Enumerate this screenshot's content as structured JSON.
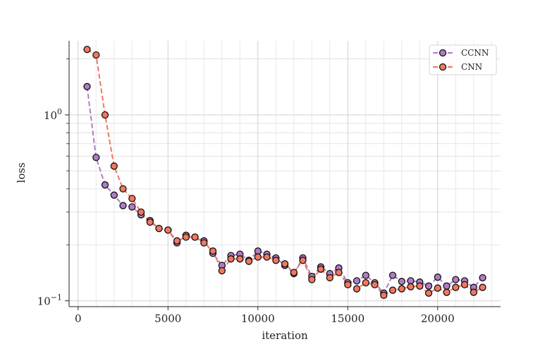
{
  "chart_data": {
    "type": "line",
    "title": "",
    "xlabel": "iteration",
    "ylabel": "loss",
    "xlim": [
      -500,
      23500
    ],
    "ylim": [
      0.093,
      2.5
    ],
    "yscale": "log",
    "grid": true,
    "legend_position": "top-right",
    "x_ticks": [
      0,
      5000,
      10000,
      15000,
      20000
    ],
    "x_tick_labels": [
      "0",
      "5000",
      "10000",
      "15000",
      "20000"
    ],
    "y_major_ticks": [
      0.1,
      1.0
    ],
    "y_tick_labels": [
      "10",
      "10"
    ],
    "y_tick_exponents": [
      "−1",
      "0"
    ],
    "y_minor_ticks": [
      0.2,
      0.3,
      0.4,
      0.5,
      0.6,
      0.7,
      0.8,
      0.9,
      2.0
    ],
    "x": [
      500,
      1000,
      1500,
      2000,
      2500,
      3000,
      3500,
      4000,
      4500,
      5000,
      5500,
      6000,
      6500,
      7000,
      7500,
      8000,
      8500,
      9000,
      9500,
      10000,
      10500,
      11000,
      11500,
      12000,
      12500,
      13000,
      13500,
      14000,
      14500,
      15000,
      15500,
      16000,
      16500,
      17000,
      17500,
      18000,
      18500,
      19000,
      19500,
      20000,
      20500,
      21000,
      21500,
      22000,
      22500
    ],
    "series": [
      {
        "name": "CCNN",
        "color": "#b07cc6",
        "values": [
          1.42,
          0.59,
          0.42,
          0.37,
          0.325,
          0.32,
          0.29,
          0.27,
          0.245,
          0.24,
          0.205,
          0.225,
          0.22,
          0.21,
          0.18,
          0.155,
          0.175,
          0.178,
          0.165,
          0.185,
          0.178,
          0.17,
          0.155,
          0.14,
          0.17,
          0.135,
          0.152,
          0.14,
          0.15,
          0.125,
          0.128,
          0.137,
          0.125,
          0.11,
          0.137,
          0.127,
          0.128,
          0.126,
          0.12,
          0.134,
          0.12,
          0.13,
          0.128,
          0.118,
          0.133
        ]
      },
      {
        "name": "CNN",
        "color": "#f0785f",
        "values": [
          2.25,
          2.1,
          1.0,
          0.53,
          0.4,
          0.355,
          0.3,
          0.265,
          0.245,
          0.24,
          0.21,
          0.22,
          0.22,
          0.205,
          0.185,
          0.145,
          0.168,
          0.168,
          0.163,
          0.172,
          0.172,
          0.165,
          0.158,
          0.142,
          0.165,
          0.13,
          0.148,
          0.133,
          0.142,
          0.122,
          0.116,
          0.125,
          0.122,
          0.107,
          0.114,
          0.116,
          0.119,
          0.12,
          0.11,
          0.117,
          0.111,
          0.118,
          0.122,
          0.111,
          0.118
        ]
      }
    ],
    "marker_edge_color": "#111111"
  }
}
